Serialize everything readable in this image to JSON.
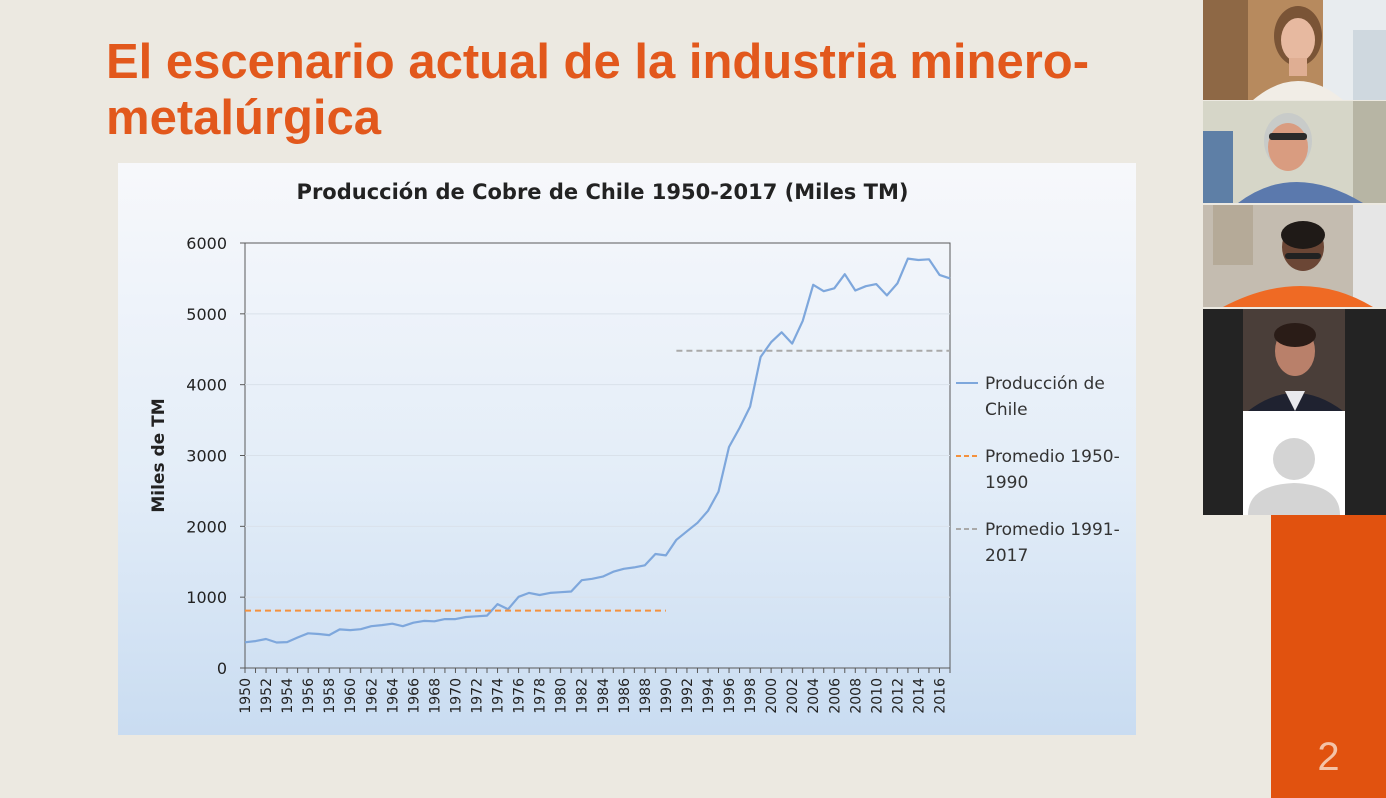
{
  "slide": {
    "title": "El escenario actual de la industria minero-metalúrgica",
    "number": "2"
  },
  "colors": {
    "title": "#e2581c",
    "production_line": "#7ea7dc",
    "avg_1950_1990": "#f4913d",
    "avg_1991_2017": "#a9a9a9",
    "accent": "#e1520f"
  },
  "chart_data": {
    "type": "line",
    "title": "Producción de Cobre de Chile 1950-2017  (Miles TM)",
    "xlabel": "",
    "ylabel": "Miles de TM",
    "ylim": [
      0,
      6000
    ],
    "xlim": [
      1950,
      2017
    ],
    "yticks": [
      0,
      1000,
      2000,
      3000,
      4000,
      5000,
      6000
    ],
    "xticks": [
      1950,
      1952,
      1954,
      1956,
      1958,
      1960,
      1962,
      1964,
      1966,
      1968,
      1970,
      1972,
      1974,
      1976,
      1978,
      1980,
      1982,
      1984,
      1986,
      1988,
      1990,
      1992,
      1994,
      1996,
      1998,
      2000,
      2002,
      2004,
      2006,
      2008,
      2010,
      2012,
      2014,
      2016
    ],
    "grid": "horizontal",
    "legend_position": "right",
    "legend": [
      {
        "key": "production",
        "label_lines": [
          "Producción de",
          "Chile"
        ]
      },
      {
        "key": "avg_1950_1990",
        "label_lines": [
          "Promedio 1950-",
          "1990"
        ]
      },
      {
        "key": "avg_1991_2017",
        "label_lines": [
          "Promedio 1991-",
          "2017"
        ]
      }
    ],
    "series": [
      {
        "key": "production",
        "style": "solid",
        "x": [
          1950,
          1951,
          1952,
          1953,
          1954,
          1955,
          1956,
          1957,
          1958,
          1959,
          1960,
          1961,
          1962,
          1963,
          1964,
          1965,
          1966,
          1967,
          1968,
          1969,
          1970,
          1971,
          1972,
          1973,
          1974,
          1975,
          1976,
          1977,
          1978,
          1979,
          1980,
          1981,
          1982,
          1983,
          1984,
          1985,
          1986,
          1987,
          1988,
          1989,
          1990,
          1991,
          1992,
          1993,
          1994,
          1995,
          1996,
          1997,
          1998,
          1999,
          2000,
          2001,
          2002,
          2003,
          2004,
          2005,
          2006,
          2007,
          2008,
          2009,
          2010,
          2011,
          2012,
          2013,
          2014,
          2015,
          2016,
          2017
        ],
        "values": [
          363,
          380,
          410,
          360,
          365,
          430,
          490,
          480,
          465,
          545,
          535,
          548,
          590,
          605,
          625,
          590,
          640,
          665,
          660,
          690,
          690,
          720,
          730,
          740,
          902,
          830,
          1005,
          1060,
          1030,
          1060,
          1070,
          1080,
          1240,
          1260,
          1290,
          1360,
          1400,
          1420,
          1450,
          1610,
          1590,
          1810,
          1930,
          2050,
          2220,
          2490,
          3120,
          3390,
          3690,
          4390,
          4600,
          4740,
          4580,
          4900,
          5410,
          5320,
          5360,
          5560,
          5330,
          5390,
          5420,
          5260,
          5430,
          5780,
          5760,
          5770,
          5550,
          5500
        ]
      },
      {
        "key": "avg_1950_1990",
        "style": "dashed",
        "x": [
          1950,
          1990
        ],
        "values": [
          810,
          810
        ]
      },
      {
        "key": "avg_1991_2017",
        "style": "dashed",
        "x": [
          1991,
          2017
        ],
        "values": [
          4480,
          4480
        ]
      }
    ]
  },
  "participants": [
    {
      "id": "participant-1"
    },
    {
      "id": "participant-2"
    },
    {
      "id": "participant-3"
    },
    {
      "id": "participant-4"
    },
    {
      "id": "participant-5"
    }
  ]
}
